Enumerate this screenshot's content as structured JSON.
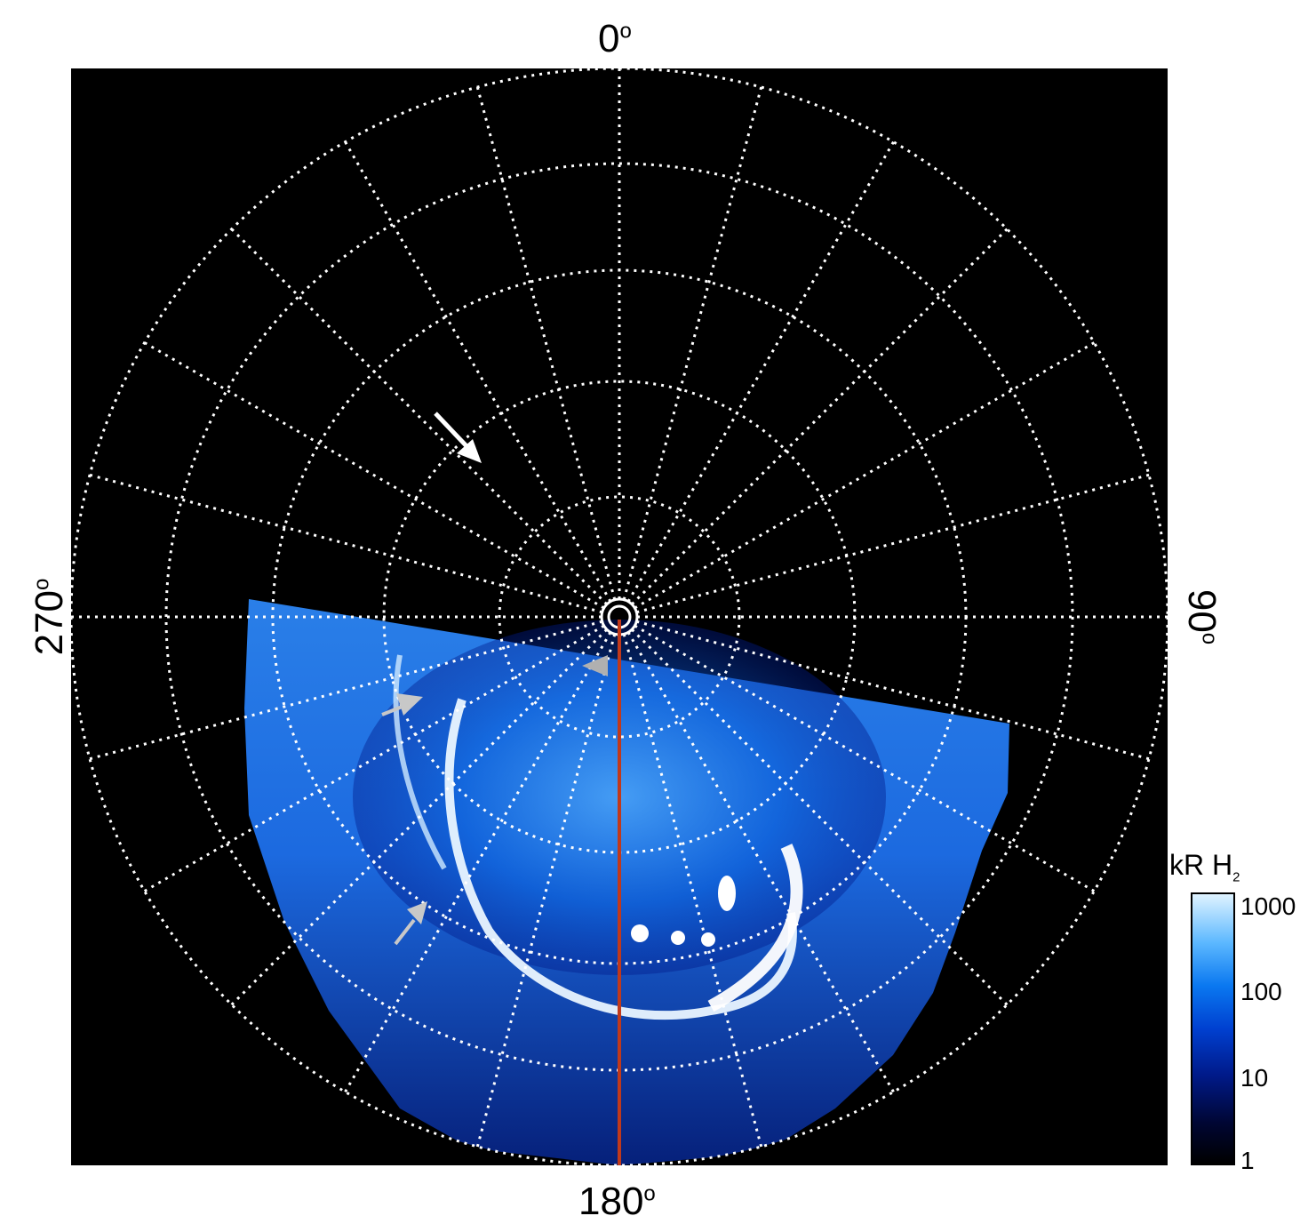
{
  "axis_labels": {
    "top": "0",
    "bottom": "180",
    "left": "270",
    "right": "90",
    "degree_symbol": "o"
  },
  "colorbar": {
    "title_main": "kR H",
    "title_sub": "2",
    "ticks": [
      "1000",
      "100",
      "10",
      "1"
    ],
    "scale": "log",
    "range": [
      1,
      1000
    ]
  },
  "colors": {
    "background": "#000000",
    "grid": "#ffffff",
    "meridian_line": "#c0391b",
    "aurora_low": "#001a8a",
    "aurora_mid": "#0a78f0",
    "aurora_high": "#dff3ff",
    "arrow_white": "#ffffff",
    "arrow_gray": "#c8c8c8"
  },
  "icons": [
    "arrow-icon-white",
    "arrow-icon-gray-1",
    "arrow-icon-gray-2",
    "arrow-icon-gray-3"
  ]
}
